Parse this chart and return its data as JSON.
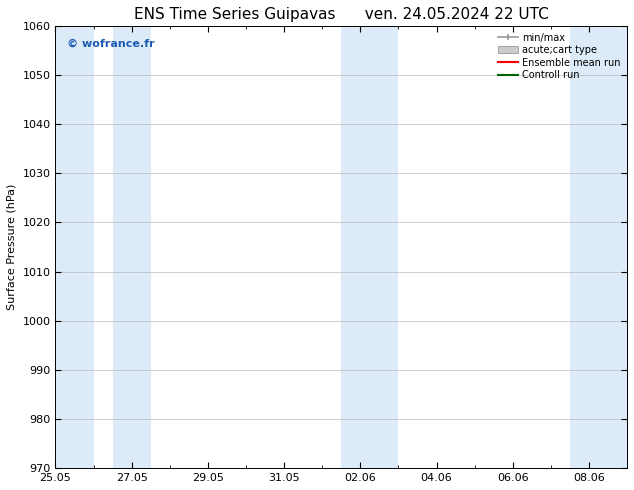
{
  "title_left": "ENS Time Series Guipavas",
  "title_right": "ven. 24.05.2024 22 UTC",
  "ylabel": "Surface Pressure (hPa)",
  "ylim": [
    970,
    1060
  ],
  "yticks": [
    970,
    980,
    990,
    1000,
    1010,
    1020,
    1030,
    1040,
    1050,
    1060
  ],
  "xlim": [
    0,
    15
  ],
  "xtick_labels": [
    "25.05",
    "27.05",
    "29.05",
    "31.05",
    "02.06",
    "04.06",
    "06.06",
    "08.06"
  ],
  "xtick_positions": [
    0,
    2,
    4,
    6,
    8,
    10,
    12,
    14
  ],
  "shaded_regions": [
    {
      "start": -0.1,
      "end": 1.0
    },
    {
      "start": 1.5,
      "end": 2.5
    },
    {
      "start": 7.5,
      "end": 9.0
    },
    {
      "start": 13.5,
      "end": 15.1
    }
  ],
  "shaded_color": "#ddeaf7",
  "background_color": "#ffffff",
  "grid_color": "#bbbbbb",
  "watermark_text": "© wofrance.fr",
  "watermark_color": "#1e5cb3",
  "legend_items": [
    {
      "label": "min/max",
      "color": "#999999",
      "style": "minmax"
    },
    {
      "label": "acute;cart type",
      "color": "#cccccc",
      "style": "box"
    },
    {
      "label": "Ensemble mean run",
      "color": "#ff0000",
      "style": "line"
    },
    {
      "label": "Controll run",
      "color": "#006400",
      "style": "line"
    }
  ],
  "title_fontsize": 11,
  "axis_fontsize": 8,
  "tick_fontsize": 8,
  "watermark_fontsize": 8
}
